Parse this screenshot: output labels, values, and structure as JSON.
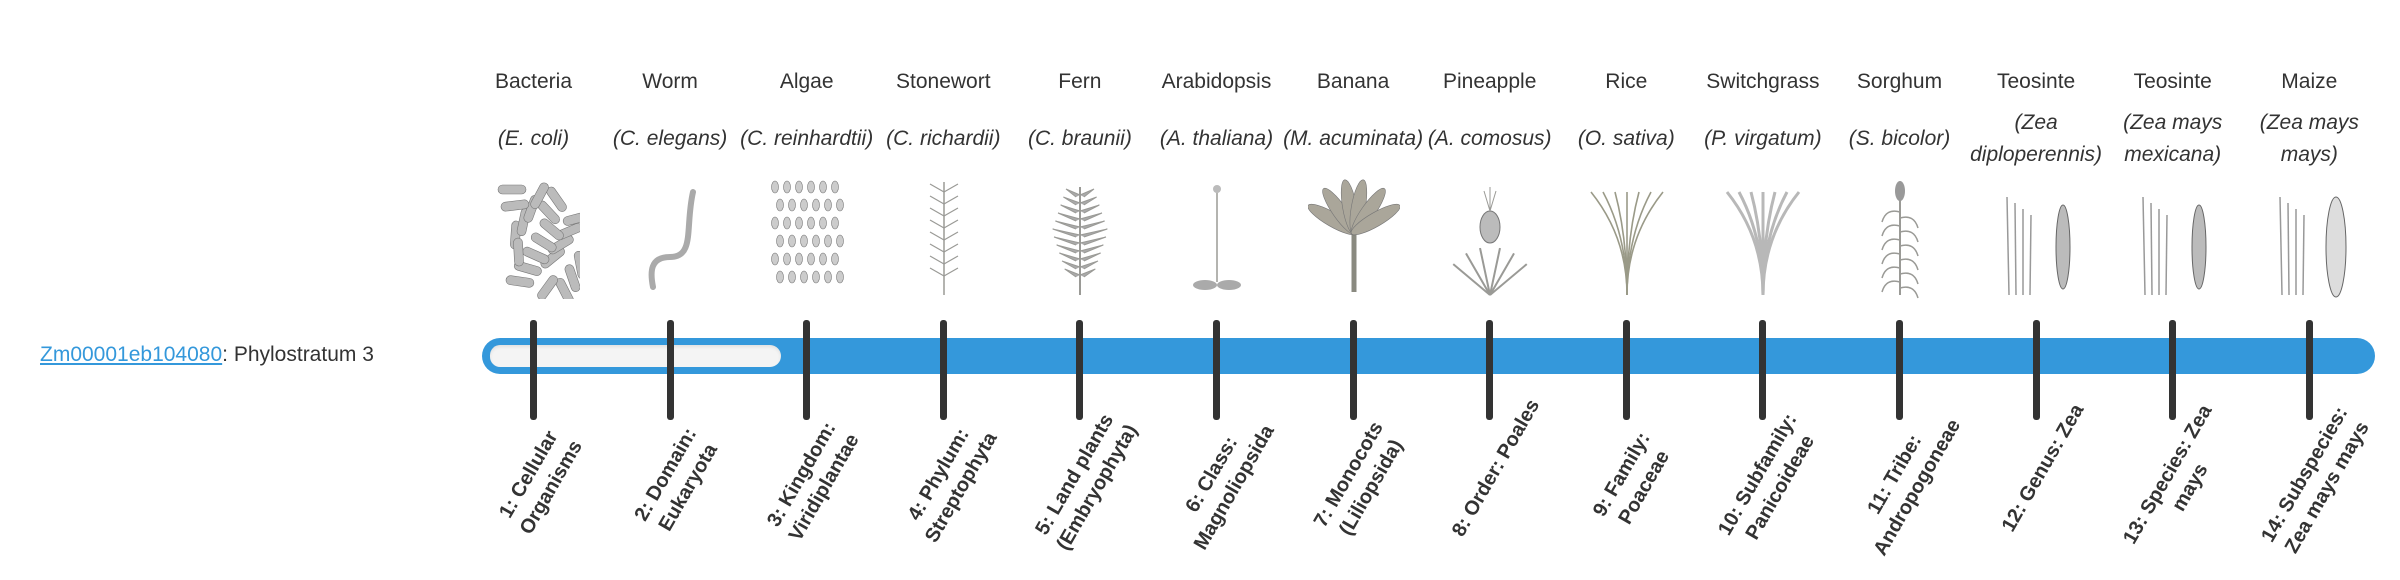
{
  "gene": {
    "id": "Zm00001eb104080",
    "separator": ": ",
    "phylostratum_label": "Phylostratum 3"
  },
  "bar": {
    "color": "#3498db",
    "phylostratum": 3,
    "total_strata": 14
  },
  "organisms": [
    {
      "common": "Bacteria",
      "latin": "(E. coli)",
      "icon": "bacteria-icon",
      "stratum": "1: Cellular Organisms"
    },
    {
      "common": "Worm",
      "latin": "(C. elegans)",
      "icon": "worm-icon",
      "stratum": "2: Domain: Eukaryota"
    },
    {
      "common": "Algae",
      "latin": "(C. reinhardtii)",
      "icon": "algae-icon",
      "stratum": "3: Kingdom: Viridiplantae"
    },
    {
      "common": "Stonewort",
      "latin": "(C. richardii)",
      "icon": "stonewort-icon",
      "stratum": "4: Phylum: Streptophyta"
    },
    {
      "common": "Fern",
      "latin": "(C. braunii)",
      "icon": "fern-icon",
      "stratum": "5: Land plants (Embryophyta)"
    },
    {
      "common": "Arabidopsis",
      "latin": "(A. thaliana)",
      "icon": "arabidopsis-icon",
      "stratum": "6: Class: Magnoliopsida"
    },
    {
      "common": "Banana",
      "latin": "(M. acuminata)",
      "icon": "banana-icon",
      "stratum": "7: Monocots (Liliopsida)"
    },
    {
      "common": "Pineapple",
      "latin": "(A. comosus)",
      "icon": "pineapple-icon",
      "stratum": "8: Order: Poales"
    },
    {
      "common": "Rice",
      "latin": "(O. sativa)",
      "icon": "rice-icon",
      "stratum": "9: Family: Poaceae"
    },
    {
      "common": "Switchgrass",
      "latin": "(P. virgatum)",
      "icon": "switchgrass-icon",
      "stratum": "10: Subfamily: Panicoideae"
    },
    {
      "common": "Sorghum",
      "latin": "(S. bicolor)",
      "icon": "sorghum-icon",
      "stratum": "11: Tribe: Andropogoneae"
    },
    {
      "common": "Teosinte",
      "latin": "(Zea diploperennis)",
      "icon": "teosinte-icon",
      "stratum": "12: Genus: Zea"
    },
    {
      "common": "Teosinte",
      "latin": "(Zea mays mexicana)",
      "icon": "teosinte-icon",
      "stratum": "13: Species: Zea mays"
    },
    {
      "common": "Maize",
      "latin": "(Zea mays mays)",
      "icon": "maize-icon",
      "stratum": "14: Subspecies: Zea mays mays"
    }
  ]
}
